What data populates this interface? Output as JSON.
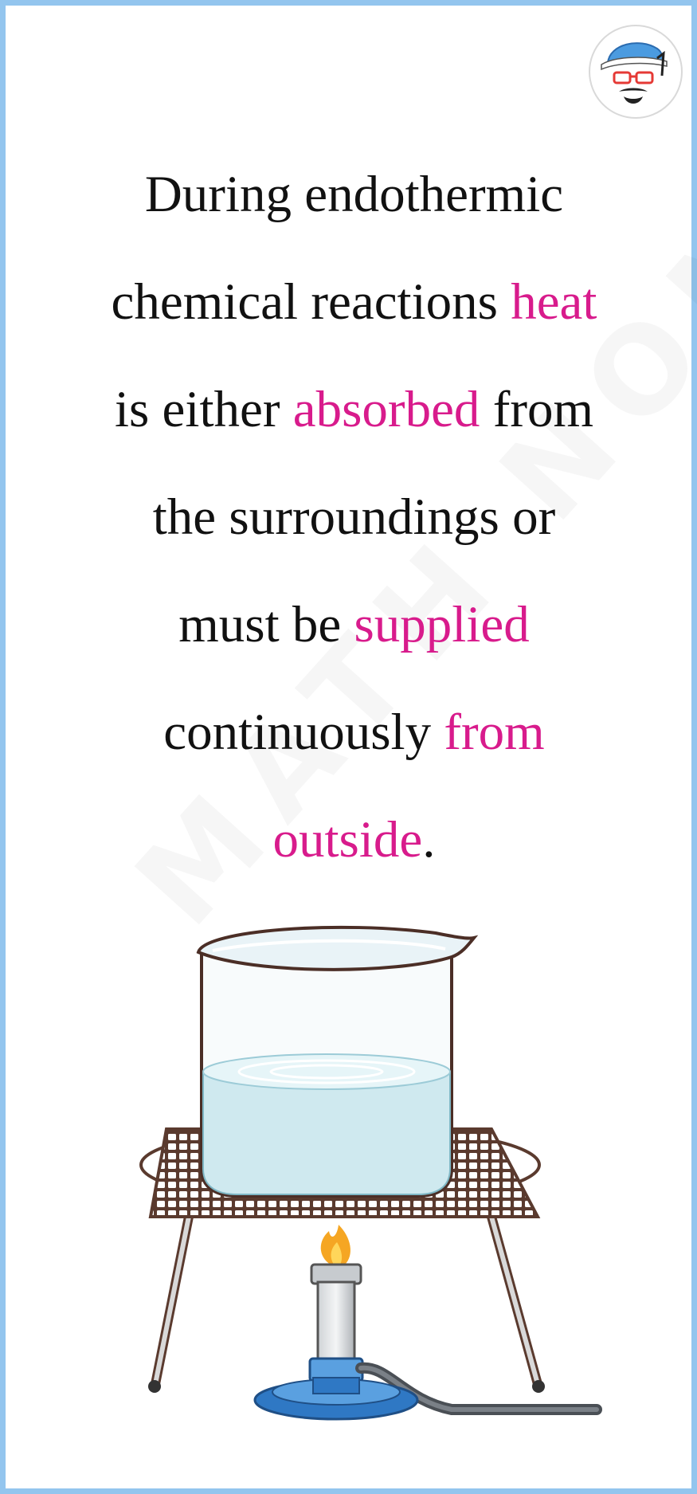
{
  "statement": {
    "lines": [
      [
        {
          "text": "During endothermic",
          "hl": false
        }
      ],
      [
        {
          "text": "chemical reactions ",
          "hl": false
        },
        {
          "text": "heat",
          "hl": true
        }
      ],
      [
        {
          "text": "is either ",
          "hl": false
        },
        {
          "text": "absorbed",
          "hl": true
        },
        {
          "text": " from",
          "hl": false
        }
      ],
      [
        {
          "text": "the surroundings or",
          "hl": false
        }
      ],
      [
        {
          "text": "must be ",
          "hl": false
        },
        {
          "text": "supplied",
          "hl": true
        }
      ],
      [
        {
          "text": "continuously ",
          "hl": false
        },
        {
          "text": "from",
          "hl": true
        }
      ],
      [
        {
          "text": "outside",
          "hl": true
        },
        {
          "text": ".",
          "hl": false
        }
      ]
    ]
  },
  "watermark": {
    "text": "MATH NOMAD"
  },
  "icons": {
    "avatar": "cartoon-face-avatar-icon",
    "illustration": "beaker-on-tripod-over-bunsen-burner"
  },
  "colors": {
    "border": "#93c5ee",
    "highlight": "#d81b8c",
    "text": "#111111",
    "water": "#cfe9ef",
    "burner": "#2f78c4",
    "flame": "#f5a623"
  }
}
